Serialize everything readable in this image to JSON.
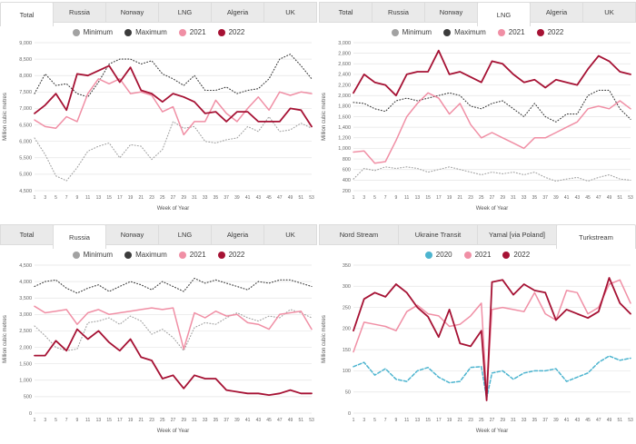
{
  "colors": {
    "background": "#ffffff",
    "tab_bg": "#eaeaea",
    "tab_selected_bg": "#ffffff",
    "tab_border": "#dcdcdc",
    "grid": "#e4e4e4",
    "minimum": "#a2a2a2",
    "maximum": "#3c3c3c",
    "y2020": "#4cb4cf",
    "y2021": "#f08fa5",
    "y2022": "#a61234"
  },
  "charts": [
    {
      "tabs": [
        {
          "label": "Total",
          "selected": true
        },
        {
          "label": "Russia",
          "selected": false
        },
        {
          "label": "Norway",
          "selected": false
        },
        {
          "label": "LNG",
          "selected": false
        },
        {
          "label": "Algeria",
          "selected": false
        },
        {
          "label": "UK",
          "selected": false
        }
      ],
      "legend": [
        {
          "label": "Minimum",
          "color": "#a2a2a2"
        },
        {
          "label": "Maximum",
          "color": "#3c3c3c"
        },
        {
          "label": "2021",
          "color": "#f08fa5"
        },
        {
          "label": "2022",
          "color": "#a61234"
        }
      ],
      "chart_data": {
        "type": "line",
        "title": "Total",
        "xlabel": "Week of Year",
        "ylabel": "Million cubic metres",
        "ylim": [
          4500,
          9000
        ],
        "y_step": 500,
        "x_ticks": [
          1,
          3,
          5,
          7,
          9,
          11,
          13,
          15,
          17,
          19,
          21,
          23,
          25,
          27,
          29,
          31,
          33,
          35,
          37,
          39,
          41,
          43,
          45,
          47,
          49,
          51,
          53
        ],
        "x": [
          1,
          3,
          5,
          7,
          9,
          11,
          13,
          15,
          17,
          19,
          21,
          23,
          25,
          27,
          29,
          31,
          33,
          35,
          37,
          39,
          41,
          43,
          45,
          47,
          49,
          51,
          53
        ],
        "series": [
          {
            "name": "Minimum",
            "color": "#a2a2a2",
            "style": "dotted",
            "values": [
              6100,
              5600,
              4950,
              4800,
              5200,
              5700,
              5850,
              5950,
              5500,
              5900,
              5850,
              5450,
              5750,
              6600,
              6400,
              6450,
              6000,
              5950,
              6050,
              6100,
              6450,
              6300,
              6750,
              6300,
              6350,
              6550,
              6400
            ]
          },
          {
            "name": "Maximum",
            "color": "#3c3c3c",
            "style": "dotted",
            "values": [
              7450,
              8050,
              7700,
              7750,
              7450,
              7350,
              7800,
              8350,
              8500,
              8500,
              8350,
              8450,
              8050,
              7900,
              7700,
              8000,
              7550,
              7550,
              7650,
              7450,
              7550,
              7600,
              7900,
              8500,
              8650,
              8300,
              7900
            ]
          },
          {
            "name": "2021",
            "color": "#f08fa5",
            "style": "solid",
            "values": [
              6650,
              6450,
              6400,
              6750,
              6600,
              7450,
              7900,
              7750,
              7900,
              7450,
              7500,
              7400,
              6900,
              7050,
              6200,
              6600,
              6600,
              7250,
              6850,
              6600,
              7000,
              7350,
              6950,
              7500,
              7400,
              7500,
              7450
            ]
          },
          {
            "name": "2022",
            "color": "#a61234",
            "style": "solid",
            "values": [
              6850,
              7100,
              7450,
              6950,
              8050,
              8000,
              8150,
              8300,
              7800,
              8250,
              7550,
              7450,
              7200,
              7450,
              7350,
              7200,
              6850,
              6900,
              6600,
              6900,
              6900,
              6600,
              6600,
              6600,
              7000,
              6950,
              6450
            ]
          }
        ]
      }
    },
    {
      "tabs": [
        {
          "label": "Total",
          "selected": false
        },
        {
          "label": "Russia",
          "selected": false
        },
        {
          "label": "Norway",
          "selected": false
        },
        {
          "label": "LNG",
          "selected": true
        },
        {
          "label": "Algeria",
          "selected": false
        },
        {
          "label": "UK",
          "selected": false
        }
      ],
      "legend": [
        {
          "label": "Minimum",
          "color": "#a2a2a2"
        },
        {
          "label": "Maximum",
          "color": "#3c3c3c"
        },
        {
          "label": "2021",
          "color": "#f08fa5"
        },
        {
          "label": "2022",
          "color": "#a61234"
        }
      ],
      "chart_data": {
        "type": "line",
        "title": "LNG",
        "xlabel": "Week of Year",
        "ylabel": "Million cubic metres",
        "ylim": [
          200,
          3000
        ],
        "y_step": 200,
        "x_ticks": [
          1,
          3,
          5,
          7,
          9,
          11,
          13,
          15,
          17,
          19,
          21,
          23,
          25,
          27,
          29,
          31,
          33,
          35,
          37,
          39,
          41,
          43,
          45,
          47,
          49,
          51,
          53
        ],
        "x": [
          1,
          3,
          5,
          7,
          9,
          11,
          13,
          15,
          17,
          19,
          21,
          23,
          25,
          27,
          29,
          31,
          33,
          35,
          37,
          39,
          41,
          43,
          45,
          47,
          49,
          51,
          53
        ],
        "series": [
          {
            "name": "Minimum",
            "color": "#a2a2a2",
            "style": "dotted",
            "values": [
              420,
              620,
              580,
              650,
              620,
              650,
              620,
              550,
              600,
              650,
              600,
              550,
              500,
              550,
              520,
              550,
              500,
              550,
              450,
              380,
              420,
              450,
              380,
              450,
              500,
              420,
              400
            ]
          },
          {
            "name": "Maximum",
            "color": "#3c3c3c",
            "style": "dotted",
            "values": [
              1870,
              1850,
              1750,
              1700,
              1900,
              1950,
              1900,
              1950,
              2000,
              2050,
              2000,
              1800,
              1750,
              1850,
              1900,
              1750,
              1600,
              1850,
              1600,
              1500,
              1650,
              1650,
              2000,
              2100,
              2100,
              1750,
              1550
            ]
          },
          {
            "name": "2021",
            "color": "#f08fa5",
            "style": "solid",
            "values": [
              930,
              950,
              720,
              750,
              1150,
              1600,
              1850,
              2050,
              1950,
              1650,
              1850,
              1450,
              1200,
              1300,
              1200,
              1100,
              1000,
              1200,
              1200,
              1300,
              1400,
              1500,
              1750,
              1800,
              1750,
              1900,
              1750
            ]
          },
          {
            "name": "2022",
            "color": "#a61234",
            "style": "solid",
            "values": [
              2050,
              2400,
              2250,
              2200,
              2000,
              2400,
              2450,
              2450,
              2850,
              2400,
              2450,
              2350,
              2250,
              2650,
              2600,
              2400,
              2250,
              2300,
              2150,
              2300,
              2250,
              2200,
              2500,
              2750,
              2650,
              2450,
              2400
            ]
          }
        ]
      }
    },
    {
      "tabs": [
        {
          "label": "Total",
          "selected": false
        },
        {
          "label": "Russia",
          "selected": true
        },
        {
          "label": "Norway",
          "selected": false
        },
        {
          "label": "LNG",
          "selected": false
        },
        {
          "label": "Algeria",
          "selected": false
        },
        {
          "label": "UK",
          "selected": false
        }
      ],
      "legend": [
        {
          "label": "Minimum",
          "color": "#a2a2a2"
        },
        {
          "label": "Maximum",
          "color": "#3c3c3c"
        },
        {
          "label": "2021",
          "color": "#f08fa5"
        },
        {
          "label": "2022",
          "color": "#a61234"
        }
      ],
      "chart_data": {
        "type": "line",
        "title": "Russia",
        "xlabel": "Week of Year",
        "ylabel": "Million cubic metres",
        "ylim": [
          0,
          4500
        ],
        "y_step": 500,
        "x_ticks": [
          1,
          3,
          5,
          7,
          9,
          11,
          13,
          15,
          17,
          19,
          21,
          23,
          25,
          27,
          29,
          31,
          33,
          35,
          37,
          39,
          41,
          43,
          45,
          47,
          49,
          51,
          53
        ],
        "x": [
          1,
          3,
          5,
          7,
          9,
          11,
          13,
          15,
          17,
          19,
          21,
          23,
          25,
          27,
          29,
          31,
          33,
          35,
          37,
          39,
          41,
          43,
          45,
          47,
          49,
          51,
          53
        ],
        "series": [
          {
            "name": "Minimum",
            "color": "#a2a2a2",
            "style": "dotted",
            "values": [
              2650,
              2350,
              2000,
              1900,
              1950,
              2750,
              2800,
              2900,
              2700,
              2950,
              2800,
              2400,
              2550,
              2300,
              1900,
              2600,
              2750,
              2700,
              2900,
              3050,
              2900,
              2800,
              2950,
              2900,
              3150,
              3050,
              2900
            ]
          },
          {
            "name": "Maximum",
            "color": "#3c3c3c",
            "style": "dotted",
            "values": [
              3850,
              4000,
              4050,
              3800,
              3650,
              3800,
              3900,
              3700,
              3850,
              4000,
              3900,
              3750,
              4000,
              3850,
              3700,
              4100,
              3950,
              4050,
              3950,
              3850,
              3750,
              4000,
              3950,
              4050,
              4050,
              3950,
              3850
            ]
          },
          {
            "name": "2021",
            "color": "#f08fa5",
            "style": "solid",
            "values": [
              3250,
              3050,
              3100,
              3150,
              2700,
              3050,
              3150,
              3000,
              3050,
              3100,
              3150,
              3200,
              3150,
              3200,
              1950,
              3050,
              2900,
              3100,
              2950,
              3000,
              2750,
              2700,
              2550,
              3000,
              3050,
              3100,
              2550
            ]
          },
          {
            "name": "2022",
            "color": "#a61234",
            "style": "solid",
            "values": [
              1750,
              1750,
              2200,
              1900,
              2550,
              2250,
              2500,
              2150,
              1900,
              2250,
              1700,
              1600,
              1050,
              1150,
              750,
              1150,
              1050,
              1050,
              700,
              650,
              600,
              600,
              550,
              600,
              700,
              600,
              600
            ]
          }
        ]
      }
    },
    {
      "tabs": [
        {
          "label": "Nord Stream",
          "selected": false
        },
        {
          "label": "Ukraine Transit",
          "selected": false
        },
        {
          "label": "Yamal [via Poland]",
          "selected": false
        },
        {
          "label": "Turkstream",
          "selected": true
        }
      ],
      "legend": [
        {
          "label": "2020",
          "color": "#4cb4cf"
        },
        {
          "label": "2021",
          "color": "#f08fa5"
        },
        {
          "label": "2022",
          "color": "#a61234"
        }
      ],
      "chart_data": {
        "type": "line",
        "title": "Turkstream",
        "xlabel": "Week of Year",
        "ylabel": "Million cubic metres",
        "ylim": [
          0,
          350
        ],
        "y_step": 50,
        "x_ticks": [
          1,
          3,
          5,
          7,
          9,
          11,
          13,
          15,
          17,
          19,
          21,
          23,
          25,
          27,
          29,
          31,
          33,
          35,
          37,
          39,
          41,
          43,
          45,
          47,
          49,
          51,
          53
        ],
        "x": [
          1,
          3,
          5,
          7,
          9,
          11,
          13,
          15,
          17,
          19,
          21,
          23,
          25,
          26,
          27,
          29,
          31,
          33,
          35,
          37,
          39,
          41,
          43,
          45,
          47,
          49,
          51,
          53
        ],
        "series": [
          {
            "name": "2020",
            "color": "#4cb4cf",
            "style": "dashed",
            "values": [
              110,
              120,
              90,
              105,
              80,
              75,
              100,
              108,
              85,
              72,
              75,
              108,
              110,
              35,
              95,
              100,
              80,
              95,
              100,
              100,
              105,
              75,
              85,
              95,
              120,
              135,
              125,
              130
            ]
          },
          {
            "name": "2021",
            "color": "#f08fa5",
            "style": "solid",
            "values": [
              145,
              215,
              210,
              205,
              195,
              240,
              255,
              235,
              230,
              205,
              210,
              230,
              260,
              45,
              245,
              250,
              245,
              240,
              285,
              235,
              220,
              290,
              285,
              235,
              250,
              305,
              315,
              260
            ]
          },
          {
            "name": "2022",
            "color": "#a61234",
            "style": "solid",
            "values": [
              195,
              270,
              285,
              275,
              305,
              285,
              250,
              228,
              180,
              245,
              165,
              158,
              195,
              30,
              310,
              315,
              280,
              305,
              290,
              285,
              220,
              245,
              235,
              225,
              240,
              320,
              260,
              235
            ]
          }
        ]
      }
    }
  ]
}
